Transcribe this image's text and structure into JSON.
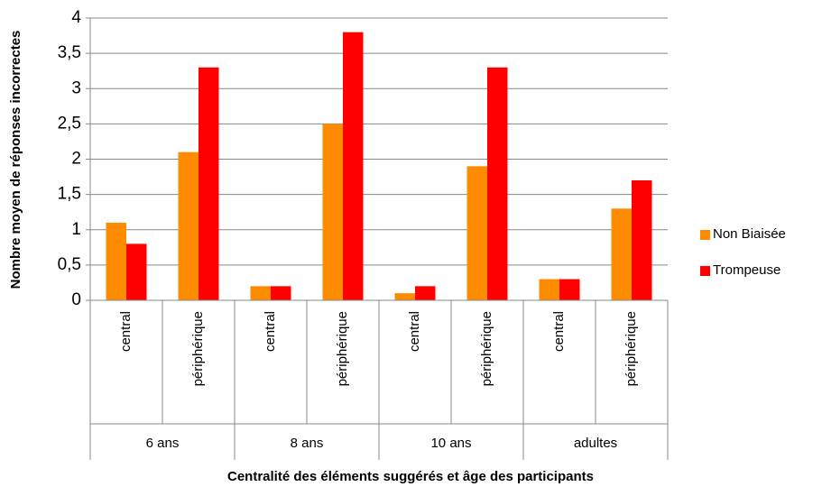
{
  "chart_data": {
    "type": "bar",
    "y_label": "Nombre moyen de réponses incorrectes",
    "x_label": "Centralité des éléments suggérés et âge des participants",
    "categories": [
      "central",
      "périphérique",
      "central",
      "périphérique",
      "central",
      "périphérique",
      "central",
      "périphérique"
    ],
    "groups": [
      "6 ans",
      "8 ans",
      "10 ans",
      "adultes"
    ],
    "series": [
      {
        "name": "Non Biaisée",
        "color": "#ff8c00",
        "values": [
          1.1,
          2.1,
          0.2,
          2.5,
          0.1,
          1.9,
          0.3,
          1.3
        ]
      },
      {
        "name": "Trompeuse",
        "color": "#ff0000",
        "values": [
          0.8,
          3.3,
          0.2,
          3.8,
          0.2,
          3.3,
          0.3,
          1.7
        ]
      }
    ],
    "ylim": [
      0,
      4
    ],
    "yticks": [
      0,
      {
        "value": 0.5,
        "label": "0,5"
      },
      1,
      {
        "value": 1.5,
        "label": "1,5"
      },
      2,
      {
        "value": 2.5,
        "label": "2,5"
      },
      3,
      {
        "value": 3.5,
        "label": "3,5"
      },
      4
    ],
    "grid": true
  }
}
